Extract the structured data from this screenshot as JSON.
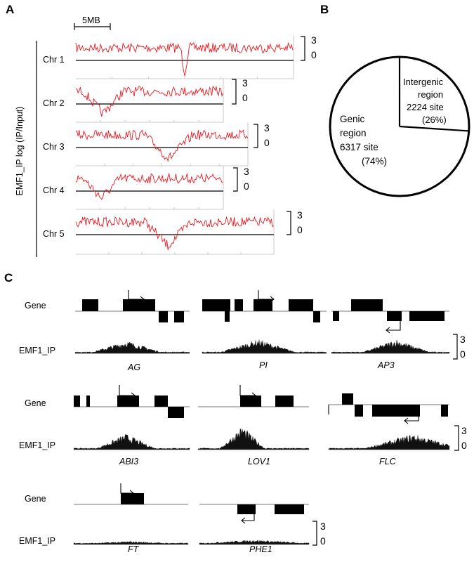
{
  "panels": {
    "a": "A",
    "b": "B",
    "c": "C"
  },
  "panel_a": {
    "scalebar_label": "5MB",
    "yaxis_label": "EMF1_IP  log (IP/Input)",
    "chromosomes": [
      "Chr 1",
      "Chr 2",
      "Chr 3",
      "Chr 4",
      "Chr 5"
    ],
    "scale_top": "3",
    "scale_bottom": "0"
  },
  "panel_b": {
    "chart_data": {
      "type": "pie",
      "title": "",
      "slices": [
        {
          "line1": "Genic",
          "line2": "region",
          "line3": "6317 site",
          "pct": "(74%)",
          "value": 6317
        },
        {
          "line1": "Intergenic",
          "line2": "region",
          "line3": "2224 site",
          "pct": "(26%)",
          "value": 2224
        }
      ]
    }
  },
  "panel_c": {
    "row_label_gene": "Gene",
    "row_label_ip": "EMF1_IP",
    "scale_top": "3",
    "scale_bottom": "0",
    "genes": [
      "AG",
      "PI",
      "AP3",
      "ABI3",
      "LOV1",
      "FLC",
      "FT",
      "PHE1"
    ]
  },
  "style": {
    "track_color": "#e8191f",
    "gene_color": "#000000"
  }
}
